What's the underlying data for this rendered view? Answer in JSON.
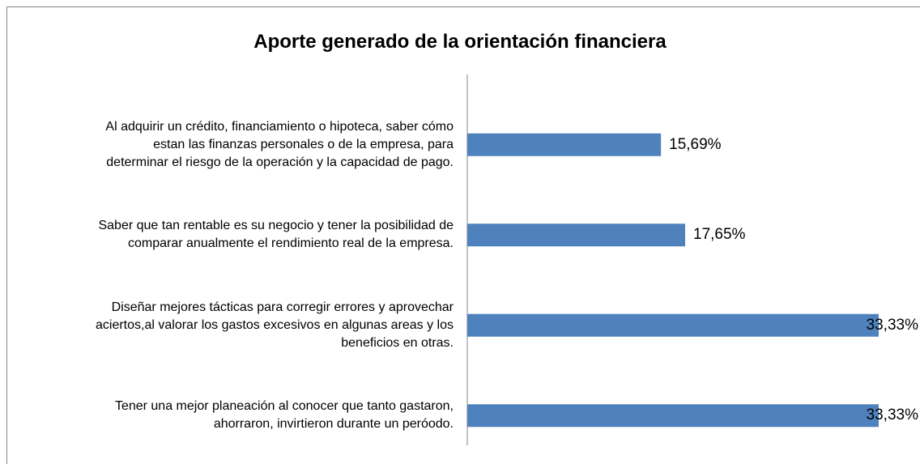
{
  "chart_data": {
    "type": "barh",
    "title": "Aporte generado de la orientación financiera",
    "categories": [
      "Al adquirir un crédito, financiamiento o hipoteca, saber cómo\nestan las finanzas personales o de la empresa, para\ndeterminar el riesgo de la operación y la capacidad de pago.",
      "Saber que tan rentable es su negocio y tener la posibilidad de\ncomparar anualmente el rendimiento real de la empresa.",
      "Diseñar mejores tácticas para corregir errores y aprovechar\naciertos,al valorar los gastos excesivos en algunas areas y los\nbeneficios en otras.",
      "Tener una mejor planeación al conocer que tanto gastaron,\nahorraron, invirtieron durante un peróodo."
    ],
    "values": [
      15.69,
      17.65,
      33.33,
      33.33
    ],
    "value_labels": [
      "15,69%",
      "17,65%",
      "33,33%",
      "33,33%"
    ],
    "color": "#4f81bd",
    "xlim": [
      0,
      33.33
    ]
  }
}
